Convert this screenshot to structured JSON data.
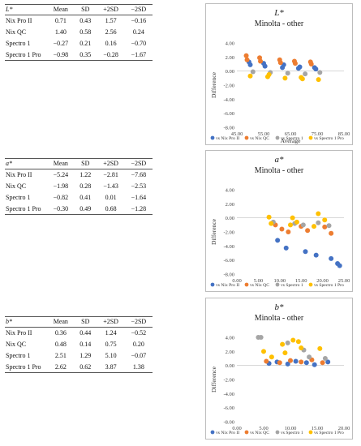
{
  "tables": [
    {
      "header": [
        "L*",
        "Mean",
        "SD",
        "+2SD",
        "−2SD"
      ],
      "rows": [
        [
          "Nix Pro II",
          "0.71",
          "0.43",
          "1.57",
          "−0.16"
        ],
        [
          "Nix QC",
          "1.40",
          "0.58",
          "2.56",
          "0.24"
        ],
        [
          "Spectro 1",
          "−0.27",
          "0.21",
          "0.16",
          "−0.70"
        ],
        [
          "Spectro 1 Pro",
          "−0.98",
          "0.35",
          "−0.28",
          "−1.67"
        ]
      ]
    },
    {
      "header": [
        "a*",
        "Mean",
        "SD",
        "+2SD",
        "−2SD"
      ],
      "rows": [
        [
          "Nix Pro II",
          "−5.24",
          "1.22",
          "−2.81",
          "−7.68"
        ],
        [
          "Nix QC",
          "−1.98",
          "0.28",
          "−1.43",
          "−2.53"
        ],
        [
          "Spectro 1",
          "−0.82",
          "0.41",
          "0.01",
          "−1.64"
        ],
        [
          "Spectro 1 Pro",
          "−0.30",
          "0.49",
          "0.68",
          "−1.28"
        ]
      ]
    },
    {
      "header": [
        "b*",
        "Mean",
        "SD",
        "+2SD",
        "−2SD"
      ],
      "rows": [
        [
          "Nix Pro II",
          "0.36",
          "0.44",
          "1.24",
          "−0.52"
        ],
        [
          "Nix QC",
          "0.48",
          "0.14",
          "0.75",
          "0.20"
        ],
        [
          "Spectro 1",
          "2.51",
          "1.29",
          "5.10",
          "−0.07"
        ],
        [
          "Spectro 1 Pro",
          "2.62",
          "0.62",
          "3.87",
          "1.38"
        ]
      ]
    }
  ],
  "chart_data": [
    {
      "type": "scatter",
      "title": "L*",
      "subtitle": "Minolta - other",
      "xlabel": "Average",
      "ylabel": "Difference",
      "xlim": [
        45,
        85
      ],
      "ylim": [
        -8,
        4
      ],
      "xticks": [
        "45.00",
        "55.00",
        "65.00",
        "75.00",
        "85.00"
      ],
      "yticks": [
        "4.00",
        "2.00",
        "0.00",
        "-2.00",
        "-4.00",
        "-6.00",
        "-8.00"
      ],
      "grid": false,
      "legend": "bottom",
      "series": [
        {
          "name": "vs Nix Pro II",
          "color": "#4472C4",
          "x": [
            49.5,
            55.0,
            62.5,
            68.5,
            74.0,
            50.0,
            55.5,
            62.0,
            68.0,
            74.5
          ],
          "y": [
            1.3,
            1.1,
            0.9,
            0.6,
            0.5,
            0.9,
            0.7,
            0.5,
            0.4,
            0.3
          ]
        },
        {
          "name": "vs Nix QC",
          "color": "#ED7D31",
          "x": [
            48.5,
            53.5,
            61.0,
            66.5,
            72.5,
            48.8,
            53.8,
            61.3,
            66.8,
            72.8
          ],
          "y": [
            2.2,
            1.9,
            1.6,
            1.4,
            1.3,
            1.6,
            1.4,
            1.2,
            1.1,
            1.0
          ]
        },
        {
          "name": "vs Spectro 1",
          "color": "#A5A5A5",
          "x": [
            51.0,
            57.5,
            64.0,
            70.5,
            76.0
          ],
          "y": [
            -0.1,
            -0.2,
            -0.3,
            -0.4,
            -0.2
          ]
        },
        {
          "name": "vs Spectro 1 Pro",
          "color": "#FFC000",
          "x": [
            50.0,
            56.5,
            63.0,
            69.5,
            75.5,
            57.0,
            69.0
          ],
          "y": [
            -0.7,
            -0.8,
            -1.0,
            -1.1,
            -1.2,
            -0.5,
            -0.9
          ]
        }
      ]
    },
    {
      "type": "scatter",
      "title": "a*",
      "subtitle": "Minolta - other",
      "xlabel": "",
      "ylabel": "Difference",
      "xlim": [
        0,
        25
      ],
      "ylim": [
        -8,
        4
      ],
      "xticks": [
        "0.00",
        "5.00",
        "10.00",
        "15.00",
        "20.00",
        "25.00"
      ],
      "yticks": [
        "4.00",
        "2.00",
        "0.00",
        "-2.00",
        "-4.00",
        "-6.00",
        "-8.00"
      ],
      "grid": false,
      "legend": "bottom",
      "series": [
        {
          "name": "vs Nix Pro II",
          "color": "#4472C4",
          "x": [
            9.5,
            11.5,
            16.0,
            18.5,
            22.0,
            23.5,
            24.0
          ],
          "y": [
            -3.2,
            -4.3,
            -4.8,
            -5.3,
            -5.8,
            -6.5,
            -6.8
          ]
        },
        {
          "name": "vs Nix QC",
          "color": "#ED7D31",
          "x": [
            9.0,
            10.5,
            15.0,
            16.5,
            20.5,
            22.0,
            12.0
          ],
          "y": [
            -1.0,
            -1.6,
            -1.2,
            -1.8,
            -1.3,
            -2.2,
            -2.0
          ]
        },
        {
          "name": "vs Spectro 1",
          "color": "#A5A5A5",
          "x": [
            8.5,
            13.5,
            15.5,
            19.0,
            21.5
          ],
          "y": [
            -0.6,
            -0.8,
            -1.0,
            -0.7,
            -1.1
          ]
        },
        {
          "name": "vs Spectro 1 Pro",
          "color": "#FFC000",
          "x": [
            7.5,
            8.0,
            13.0,
            14.0,
            19.0,
            20.5,
            12.5,
            18.0
          ],
          "y": [
            0.1,
            -0.8,
            0.0,
            -0.6,
            0.6,
            -0.3,
            -1.0,
            -1.2
          ]
        }
      ]
    },
    {
      "type": "scatter",
      "title": "b*",
      "subtitle": "Minolta - other",
      "xlabel": "",
      "ylabel": "Difference",
      "xlim": [
        0,
        20
      ],
      "ylim": [
        -8,
        4
      ],
      "xticks": [
        "0.00",
        "5.00",
        "10.00",
        "15.00",
        "20.00"
      ],
      "yticks": [
        "4.00",
        "2.00",
        "0.00",
        "-2.00",
        "-4.00",
        "-6.00",
        "-8.00"
      ],
      "grid": false,
      "legend": "bottom",
      "series": [
        {
          "name": "vs Nix Pro II",
          "color": "#4472C4",
          "x": [
            6.0,
            7.5,
            9.5,
            11.0,
            13.0,
            14.5,
            17.0
          ],
          "y": [
            0.3,
            0.5,
            0.2,
            0.6,
            0.4,
            0.1,
            0.5
          ]
        },
        {
          "name": "vs Nix QC",
          "color": "#ED7D31",
          "x": [
            5.5,
            8.0,
            10.0,
            12.0,
            14.0,
            16.0
          ],
          "y": [
            0.6,
            0.4,
            0.7,
            0.5,
            0.8,
            0.4
          ]
        },
        {
          "name": "vs Spectro 1",
          "color": "#A5A5A5",
          "x": [
            4.0,
            4.5,
            9.5,
            12.5,
            13.5,
            16.5
          ],
          "y": [
            4.0,
            4.0,
            3.2,
            2.2,
            1.2,
            1.0
          ]
        },
        {
          "name": "vs Spectro 1 Pro",
          "color": "#FFC000",
          "x": [
            5.0,
            6.5,
            8.5,
            9.0,
            10.5,
            11.5,
            12.0,
            15.5
          ],
          "y": [
            2.0,
            1.2,
            3.0,
            1.8,
            3.6,
            3.4,
            2.5,
            2.4
          ]
        }
      ]
    }
  ]
}
